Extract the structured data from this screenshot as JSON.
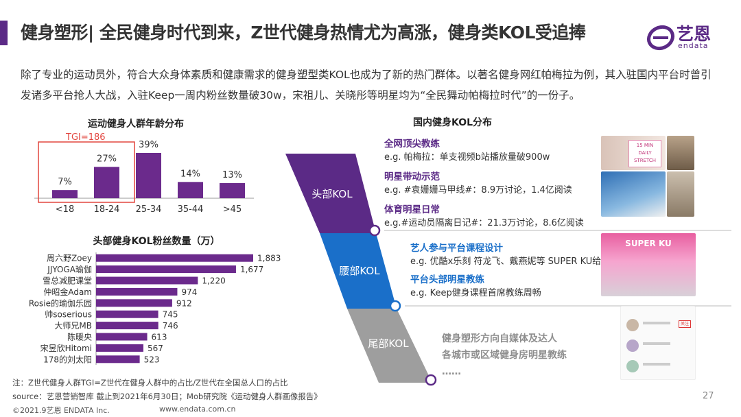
{
  "header": {
    "title": "健身塑形| 全民健身时代到来，Z世代健身热情尤为高涨，健身类KOL受追捧",
    "brand_cn": "艺恩",
    "brand_en": "endata"
  },
  "intro": "除了专业的运动员外，符合大众身体素质和健康需求的健身塑型类KOL也成为了新的热门群体。以著名健身网红帕梅拉为例，其入驻国内平台时曾引发诸多平台抢人大战，入驻Keep一周内粉丝数量破30w，宋祖儿、关晓彤等明星均为“全民舞动帕梅拉时代”的一份子。",
  "colors": {
    "accent": "#5b2a86",
    "bar": "#6b2a8c",
    "tgi_box": "#e2463f",
    "blue": "#1a6fc9",
    "grey": "#9e9e9e"
  },
  "chart_data": [
    {
      "type": "bar",
      "title": "运动健身人群年龄分布",
      "categories": [
        "<18",
        "18-24",
        "25-34",
        "35-44",
        ">45"
      ],
      "values": [
        7,
        27,
        39,
        14,
        13
      ],
      "value_labels": [
        "7%",
        "27%",
        "39%",
        "14%",
        "13%"
      ],
      "annotation": "TGI=186",
      "annotation_categories": [
        "<18",
        "18-24"
      ]
    },
    {
      "type": "bar",
      "orientation": "horizontal",
      "title": "头部健身KOL粉丝数量（万）",
      "categories": [
        "周六野Zoey",
        "JJYOGA瑜伽",
        "雪总减肥课堂",
        "仲昭金Adam",
        "Rosie的瑜伽乐园",
        "帅soserious",
        "大师兄MB",
        "陈暖央",
        "宋昱欣Hitomi",
        "178的刘太阳"
      ],
      "values": [
        1883,
        1677,
        1220,
        974,
        912,
        745,
        746,
        613,
        567,
        523
      ],
      "value_labels": [
        "1,883",
        "1,677",
        "1,220",
        "974",
        "912",
        "745",
        "746",
        "613",
        "567",
        "523"
      ]
    }
  ],
  "funnel": {
    "title": "国内健身KOL分布",
    "levels": [
      {
        "label": "头部KOL",
        "color": "#5b2a86"
      },
      {
        "label": "腰部KOL",
        "color": "#1a6fc9"
      },
      {
        "label": "尾部KOL",
        "color": "#9e9e9e"
      }
    ],
    "head": [
      {
        "title": "全网顶尖教练",
        "eg": "e.g. 帕梅拉：单支视频b站播放量破900w"
      },
      {
        "title": "明星带动示范",
        "eg": "e.g. #袁姗姗马甲线#：8.9万讨论，1.4亿阅读"
      },
      {
        "title": "体育明星日常",
        "eg": "e.g.#运动员隔离日记#：21.3万讨论，8.6亿阅读"
      }
    ],
    "waist": [
      {
        "title": "艺人参与平台课程设计",
        "eg": "e.g. 优酷x乐刻 符龙飞、戴燕妮等 SUPER KU给油舞"
      },
      {
        "title": "平台头部明星教练",
        "eg": "e.g. Keep健身课程首席教练周畅"
      }
    ],
    "tail": [
      "健身塑形方向自媒体及达人",
      "各城市或区域健身房明星教练",
      "……"
    ],
    "thumb_texts": {
      "min": "15 MIN",
      "stretch": "DAILY STRETCH",
      "superku": "SUPER KU",
      "follow": "关注"
    }
  },
  "notes": [
    "注：Z世代健身人群TGI=Z世代在健身人群中的占比/Z世代在全国总人口的占比",
    "source：艺恩营销智库  截止到2021年6月30日；Mob研究院《运动健身人群画像报告》"
  ],
  "footer": {
    "copyright": "©2021.9艺恩 ENDATA Inc.",
    "url": "www.endata.com.cn",
    "page": "27"
  }
}
